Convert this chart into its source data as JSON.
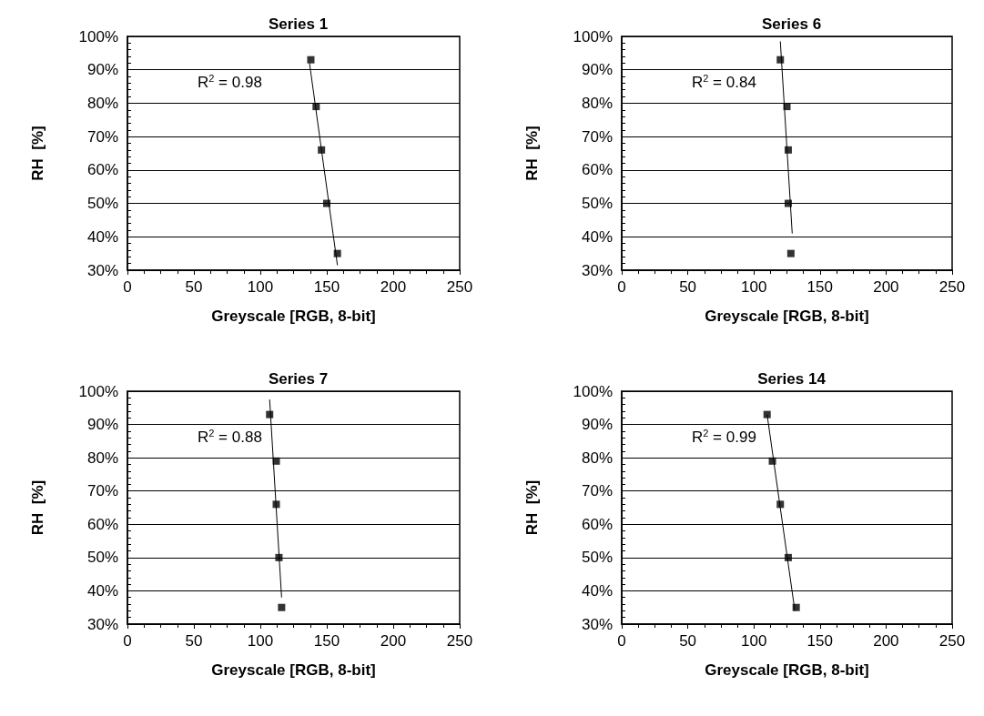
{
  "chart_data": [
    {
      "type": "scatter",
      "title": "Series 1",
      "xlabel": "Greyscale [RGB, 8-bit]",
      "ylabel": "RH  [%]",
      "xlim": [
        0,
        250
      ],
      "xticks": [
        0,
        50,
        100,
        150,
        200,
        250
      ],
      "ylim": [
        30,
        100
      ],
      "yticks": [
        {
          "value": 30,
          "label": "30%"
        },
        {
          "value": 40,
          "label": "40%"
        },
        {
          "value": 50,
          "label": "50%"
        },
        {
          "value": 60,
          "label": "60%"
        },
        {
          "value": 70,
          "label": "70%"
        },
        {
          "value": 80,
          "label": "80%"
        },
        {
          "value": 90,
          "label": "90%"
        },
        {
          "value": 100,
          "label": "100%"
        }
      ],
      "grid": "y",
      "marker": "square",
      "annotations": [
        "R$^{2}$ = 0.98"
      ],
      "series": [
        {
          "type": "scatter",
          "color": "#000000",
          "x": [
            138,
            142,
            146,
            150,
            158
          ],
          "values": [
            93,
            79,
            66,
            50,
            35
          ]
        },
        {
          "type": "line",
          "color": "#000000",
          "marker": "none",
          "x": [
            137,
            158
          ],
          "values": [
            92,
            31.5
          ]
        }
      ]
    },
    {
      "type": "scatter",
      "title": "Series 6",
      "xlabel": "Greyscale [RGB, 8-bit]",
      "ylabel": "RH  [%]",
      "xlim": [
        0,
        250
      ],
      "xticks": [
        0,
        50,
        100,
        150,
        200,
        250
      ],
      "ylim": [
        30,
        100
      ],
      "yticks": [
        {
          "value": 30,
          "label": "30%"
        },
        {
          "value": 40,
          "label": "40%"
        },
        {
          "value": 50,
          "label": "50%"
        },
        {
          "value": 60,
          "label": "60%"
        },
        {
          "value": 70,
          "label": "70%"
        },
        {
          "value": 80,
          "label": "80%"
        },
        {
          "value": 90,
          "label": "90%"
        },
        {
          "value": 100,
          "label": "100%"
        }
      ],
      "grid": "y",
      "marker": "square",
      "annotations": [
        "R$^{2}$ = 0.84"
      ],
      "series": [
        {
          "type": "scatter",
          "color": "#000000",
          "x": [
            120,
            125,
            126,
            126,
            128
          ],
          "values": [
            93,
            79,
            66,
            50,
            35
          ]
        },
        {
          "type": "line",
          "color": "#000000",
          "marker": "none",
          "x": [
            120,
            129
          ],
          "values": [
            98.5,
            41
          ]
        }
      ]
    },
    {
      "type": "scatter",
      "title": "Series 7",
      "xlabel": "Greyscale [RGB, 8-bit]",
      "ylabel": "RH  [%]",
      "xlim": [
        0,
        250
      ],
      "xticks": [
        0,
        50,
        100,
        150,
        200,
        250
      ],
      "ylim": [
        30,
        100
      ],
      "yticks": [
        {
          "value": 30,
          "label": "30%"
        },
        {
          "value": 40,
          "label": "40%"
        },
        {
          "value": 50,
          "label": "50%"
        },
        {
          "value": 60,
          "label": "60%"
        },
        {
          "value": 70,
          "label": "70%"
        },
        {
          "value": 80,
          "label": "80%"
        },
        {
          "value": 90,
          "label": "90%"
        },
        {
          "value": 100,
          "label": "100%"
        }
      ],
      "grid": "y",
      "marker": "square",
      "annotations": [
        "R$^{2}$ = 0.88"
      ],
      "series": [
        {
          "type": "scatter",
          "color": "#000000",
          "x": [
            107,
            112,
            112,
            114,
            116
          ],
          "values": [
            93,
            79,
            66,
            50,
            35
          ]
        },
        {
          "type": "line",
          "color": "#000000",
          "marker": "none",
          "x": [
            107,
            116
          ],
          "values": [
            97.5,
            38
          ]
        }
      ]
    },
    {
      "type": "scatter",
      "title": "Series 14",
      "xlabel": "Greyscale [RGB, 8-bit]",
      "ylabel": "RH  [%]",
      "xlim": [
        0,
        250
      ],
      "xticks": [
        0,
        50,
        100,
        150,
        200,
        250
      ],
      "ylim": [
        30,
        100
      ],
      "yticks": [
        {
          "value": 30,
          "label": "30%"
        },
        {
          "value": 40,
          "label": "40%"
        },
        {
          "value": 50,
          "label": "50%"
        },
        {
          "value": 60,
          "label": "60%"
        },
        {
          "value": 70,
          "label": "70%"
        },
        {
          "value": 80,
          "label": "80%"
        },
        {
          "value": 90,
          "label": "90%"
        },
        {
          "value": 100,
          "label": "100%"
        }
      ],
      "grid": "y",
      "marker": "square",
      "annotations": [
        "R$^{2}$ = 0.99"
      ],
      "series": [
        {
          "type": "scatter",
          "color": "#000000",
          "x": [
            110,
            114,
            120,
            126,
            132
          ],
          "values": [
            93,
            79,
            66,
            50,
            35
          ]
        },
        {
          "type": "line",
          "color": "#000000",
          "marker": "none",
          "x": [
            110,
            131
          ],
          "values": [
            93,
            34
          ]
        }
      ]
    }
  ]
}
